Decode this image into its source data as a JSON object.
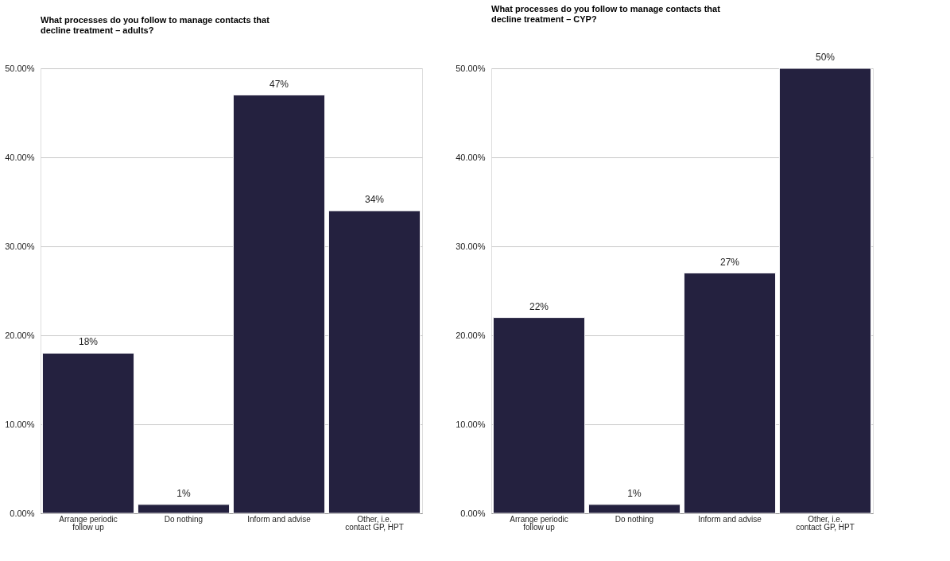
{
  "chart_data": [
    {
      "type": "bar",
      "title": "What processes do you follow to manage contacts that decline treatment – adults?",
      "categories": [
        "Arrange periodic follow up",
        "Do nothing",
        "Inform and advise",
        "Other, i.e. contact GP, HPT"
      ],
      "values": [
        18,
        1,
        47,
        34
      ],
      "value_labels": [
        "18%",
        "1%",
        "47%",
        "34%"
      ],
      "color": "#24213f",
      "ylim": [
        0,
        50
      ],
      "yticks": [
        {
          "value": 0,
          "label": "0.00%"
        },
        {
          "value": 10,
          "label": "10.00%"
        },
        {
          "value": 20,
          "label": "20.00%"
        },
        {
          "value": 30,
          "label": "30.00%"
        },
        {
          "value": 40,
          "label": "40.00%"
        },
        {
          "value": 50,
          "label": "50.00%"
        }
      ],
      "grid": "y"
    },
    {
      "type": "bar",
      "title": "What processes do you follow to manage contacts that decline treatment – CYP?",
      "categories": [
        "Arrange periodic follow up",
        "Do nothing",
        "Inform and advise",
        "Other, i.e. contact GP, HPT"
      ],
      "values": [
        22,
        1,
        27,
        50
      ],
      "value_labels": [
        "22%",
        "1%",
        "27%",
        "50%"
      ],
      "color": "#24213f",
      "ylim": [
        0,
        50
      ],
      "yticks": [
        {
          "value": 0,
          "label": "0.00%"
        },
        {
          "value": 10,
          "label": "10.00%"
        },
        {
          "value": 20,
          "label": "20.00%"
        },
        {
          "value": 30,
          "label": "30.00%"
        },
        {
          "value": 40,
          "label": "40.00%"
        },
        {
          "value": 50,
          "label": "50.00%"
        }
      ],
      "grid": "y"
    }
  ]
}
